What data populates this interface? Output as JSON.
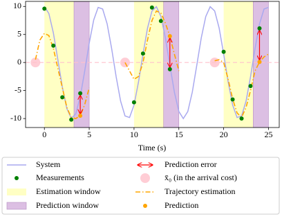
{
  "chart_data": {
    "type": "line",
    "xlabel": "Time (s)",
    "xlim": [
      -2.1,
      26.2
    ],
    "ylim": [
      -11.6,
      10.9
    ],
    "xticks": [
      0,
      5,
      10,
      15,
      20,
      25
    ],
    "yticks": [
      -10,
      -5,
      0,
      5,
      10
    ],
    "system": {
      "name": "System",
      "color": "#a9a9ef",
      "x": [
        0,
        0.5,
        1,
        1.5,
        2,
        2.5,
        3,
        3.5,
        4,
        4.5,
        5,
        5.5,
        6,
        6.5,
        7,
        7.5,
        8,
        8.5,
        9,
        9.5,
        10,
        10.5,
        11,
        11.5,
        12,
        12.5,
        13,
        13.5,
        14,
        14.5,
        15,
        15.5,
        16,
        16.5,
        17,
        17.5,
        18,
        18.5,
        19,
        19.5,
        20,
        20.5,
        21,
        21.5,
        22,
        22.5,
        23,
        23.5,
        24,
        24.5,
        25
      ],
      "values": [
        10,
        8.74,
        5.29,
        0.51,
        -4.4,
        -8.22,
        -9.95,
        -9.18,
        -6.12,
        -1.51,
        3.46,
        7.6,
        9.82,
        9.54,
        6.89,
        2.51,
        -2.51,
        -6.89,
        -9.54,
        -9.82,
        -7.6,
        -3.46,
        1.51,
        6.12,
        9.19,
        9.95,
        8.21,
        4.4,
        -0.51,
        -5.29,
        -8.74,
        -10,
        -8.74,
        -5.29,
        -0.51,
        4.4,
        8.21,
        9.95,
        9.19,
        6.12,
        1.51,
        -3.46,
        -7.6,
        -9.82,
        -9.54,
        -6.89,
        -2.51,
        2.51,
        6.89,
        9.54,
        9.82
      ]
    },
    "measurements": {
      "name": "Measurements",
      "color": "#008000",
      "x": [
        0,
        1,
        2,
        3,
        4,
        10,
        11,
        12,
        13,
        14,
        20,
        21,
        22,
        23,
        24
      ],
      "values": [
        9.6,
        3,
        -6.2,
        -10.2,
        -5.5,
        -7.1,
        1.6,
        9.8,
        7.4,
        -1.2,
        1.9,
        -6.6,
        -10,
        -4.2,
        6.1
      ]
    },
    "estimation_windows": {
      "name": "Estimation window",
      "color": "#ffffc4",
      "spans": [
        [
          0,
          3.3
        ],
        [
          10,
          13.3
        ],
        [
          20,
          23.3
        ]
      ]
    },
    "prediction_windows": {
      "name": "Prediction window",
      "color": "#dcbfe3",
      "spans": [
        [
          3.3,
          5
        ],
        [
          13.3,
          15
        ],
        [
          23.3,
          25
        ]
      ]
    },
    "prediction_error": {
      "name": "Prediction error",
      "color": "#ff0000"
    },
    "arrival_cost": {
      "name": "x̄₀ (in the arrival cost)",
      "color": "#ffc0cb",
      "x": [
        -1,
        9,
        19
      ],
      "values": [
        0,
        0,
        0
      ]
    },
    "trajectory": {
      "name": "Trajectory estimation",
      "color": "#ffa500",
      "x": [
        -1,
        -0.5,
        0,
        0.5,
        1,
        1.5,
        2,
        2.5,
        3,
        3.5,
        4,
        4.5,
        5,
        7,
        9,
        9.5,
        10,
        10.5,
        11,
        11.5,
        12,
        12.5,
        13,
        13.5,
        14,
        14.5,
        15,
        17,
        19,
        19.5,
        20,
        20.5,
        21,
        21.5,
        22,
        22.5,
        23,
        23.5,
        24,
        24.5,
        25
      ],
      "values": [
        0.5,
        4,
        5.2,
        4.8,
        2.5,
        -1,
        -4.5,
        -8,
        -9.8,
        -10,
        -9.5,
        -7.5,
        -4.5,
        null,
        0,
        -1.5,
        -3,
        -2.5,
        0,
        4,
        7.5,
        9.2,
        8.8,
        7,
        4.7,
        1.5,
        -1.5,
        null,
        0.3,
        0.5,
        0,
        -3,
        -6.5,
        -9,
        -9.8,
        -8,
        -5,
        -1.5,
        0.1,
        1,
        1.5
      ]
    },
    "predictions": {
      "name": "Prediction",
      "color": "#ffa500",
      "x": [
        4,
        14,
        24
      ],
      "values": [
        -9.5,
        4.7,
        0.1
      ]
    }
  }
}
